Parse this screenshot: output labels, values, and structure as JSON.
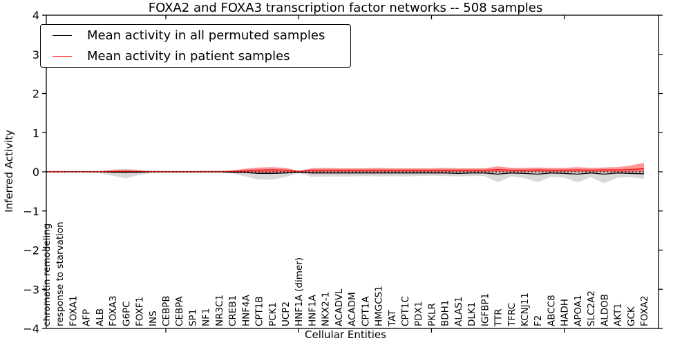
{
  "chart_data": {
    "type": "line",
    "title": "FOXA2 and FOXA3 transcription factor networks -- 508 samples",
    "xlabel": "Cellular Entities",
    "ylabel": "Inferred Activity",
    "ylim": [
      -4,
      4
    ],
    "yticks": [
      4,
      3,
      2,
      1,
      0,
      -1,
      -2,
      -3,
      -4
    ],
    "xtick_marks_at_category_indices": [
      9,
      19,
      29,
      39
    ],
    "zero_reference_line": 0,
    "grid": false,
    "legend_position": "upper left",
    "categories": [
      "chromatin remodeling",
      "response to starvation",
      "FOXA1",
      "AFP",
      "ALB",
      "FOXA3",
      "G6PC",
      "FOXF1",
      "INS",
      "CEBPB",
      "CEBPA",
      "SP1",
      "NF1",
      "NR3C1",
      "CREB1",
      "HNF4A",
      "CPT1B",
      "PCK1",
      "UCP2",
      "HNF1A (dimer)",
      "HNF1A",
      "NKX2-1",
      "ACADVL",
      "ACADM",
      "CPT1A",
      "HMGCS1",
      "TAT",
      "CPT1C",
      "PDX1",
      "PKLR",
      "BDH1",
      "ALAS1",
      "DLK1",
      "IGFBP1",
      "TTR",
      "TFRC",
      "KCNJ11",
      "F2",
      "ABCC8",
      "HADH",
      "APOA1",
      "SLC2A2",
      "ALDOB",
      "AKT1",
      "GCK",
      "FOXA2"
    ],
    "series": [
      {
        "name": "Mean activity in all permuted samples",
        "color": "#000000",
        "band_color": "rgba(0,0,0,0.15)",
        "values": [
          0,
          0,
          0,
          0,
          0,
          -0.01,
          -0.01,
          -0.01,
          0,
          0,
          0,
          0,
          0,
          0,
          -0.01,
          -0.02,
          -0.04,
          -0.04,
          -0.03,
          -0.01,
          -0.03,
          -0.03,
          -0.03,
          -0.03,
          -0.03,
          -0.03,
          -0.03,
          -0.03,
          -0.03,
          -0.03,
          -0.03,
          -0.04,
          -0.03,
          -0.03,
          -0.06,
          -0.03,
          -0.04,
          -0.06,
          -0.03,
          -0.04,
          -0.06,
          -0.03,
          -0.06,
          -0.03,
          -0.04,
          -0.05
        ],
        "band_lower": [
          -0.02,
          -0.02,
          -0.02,
          -0.02,
          -0.03,
          -0.1,
          -0.17,
          -0.08,
          -0.03,
          -0.03,
          -0.03,
          -0.03,
          -0.03,
          -0.03,
          -0.04,
          -0.12,
          -0.2,
          -0.2,
          -0.14,
          -0.03,
          -0.13,
          -0.12,
          -0.12,
          -0.12,
          -0.11,
          -0.12,
          -0.11,
          -0.12,
          -0.11,
          -0.1,
          -0.11,
          -0.12,
          -0.11,
          -0.11,
          -0.27,
          -0.12,
          -0.16,
          -0.27,
          -0.13,
          -0.15,
          -0.27,
          -0.14,
          -0.29,
          -0.15,
          -0.14,
          -0.18
        ],
        "band_upper": [
          0.02,
          0.02,
          0.02,
          0.02,
          0.02,
          0.06,
          0.08,
          0.05,
          0.03,
          0.02,
          0.02,
          0.02,
          0.03,
          0.03,
          0.03,
          0.05,
          0.07,
          0.07,
          0.06,
          0.02,
          0.04,
          0.04,
          0.04,
          0.04,
          0.04,
          0.04,
          0.04,
          0.04,
          0.04,
          0.04,
          0.04,
          0.04,
          0.04,
          0.04,
          0.06,
          0.04,
          0.05,
          0.06,
          0.04,
          0.05,
          0.06,
          0.05,
          0.06,
          0.05,
          0.05,
          0.07
        ]
      },
      {
        "name": "Mean activity in patient samples",
        "color": "#ff0000",
        "band_color": "rgba(255,0,0,0.42)",
        "values": [
          0,
          0,
          0,
          0,
          0,
          0.01,
          0.01,
          0.01,
          0,
          0,
          0,
          0,
          0,
          0,
          0.01,
          0.02,
          0.04,
          0.05,
          0.04,
          0.01,
          0.04,
          0.04,
          0.04,
          0.04,
          0.04,
          0.04,
          0.04,
          0.04,
          0.04,
          0.04,
          0.04,
          0.04,
          0.04,
          0.04,
          0.06,
          0.04,
          0.04,
          0.05,
          0.04,
          0.04,
          0.05,
          0.04,
          0.05,
          0.05,
          0.06,
          0.08
        ],
        "band_lower": [
          -0.01,
          -0.01,
          -0.01,
          -0.01,
          -0.01,
          -0.02,
          -0.03,
          -0.02,
          -0.01,
          -0.01,
          -0.01,
          -0.01,
          -0.01,
          -0.01,
          -0.01,
          -0.03,
          -0.05,
          -0.05,
          -0.04,
          -0.01,
          -0.02,
          -0.01,
          -0.01,
          -0.01,
          -0.01,
          -0.01,
          -0.01,
          -0.01,
          -0.01,
          -0.01,
          -0.01,
          -0.01,
          -0.01,
          -0.01,
          -0.02,
          -0.01,
          -0.01,
          -0.01,
          -0.01,
          -0.01,
          -0.01,
          -0.01,
          -0.01,
          -0.01,
          -0.01,
          -0.01
        ],
        "band_upper": [
          0.02,
          0.02,
          0.02,
          0.02,
          0.02,
          0.04,
          0.05,
          0.03,
          0.02,
          0.02,
          0.02,
          0.02,
          0.02,
          0.02,
          0.03,
          0.08,
          0.11,
          0.12,
          0.1,
          0.02,
          0.09,
          0.1,
          0.09,
          0.09,
          0.09,
          0.1,
          0.09,
          0.09,
          0.09,
          0.09,
          0.1,
          0.09,
          0.09,
          0.09,
          0.14,
          0.1,
          0.1,
          0.11,
          0.1,
          0.1,
          0.12,
          0.1,
          0.11,
          0.12,
          0.16,
          0.23
        ]
      }
    ]
  }
}
